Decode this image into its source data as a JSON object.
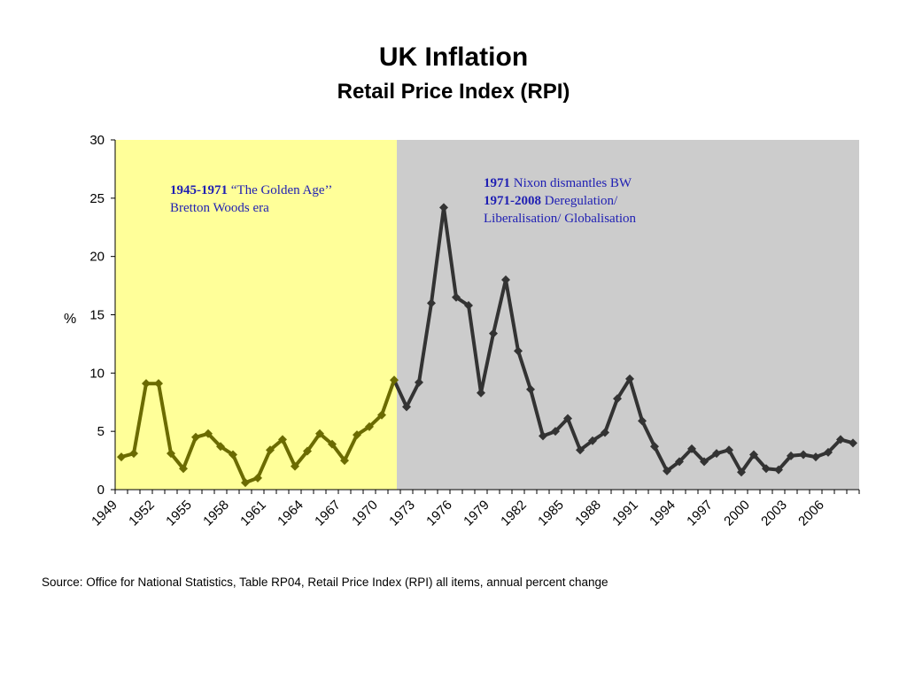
{
  "chart_data": {
    "type": "line",
    "title": "UK Inflation",
    "subtitle": "Retail Price Index (RPI)",
    "ylabel": "%",
    "xlabel": "",
    "ylim": [
      0,
      30
    ],
    "yticks": [
      0,
      5,
      10,
      15,
      20,
      25,
      30
    ],
    "x": [
      1949,
      1950,
      1951,
      1952,
      1953,
      1954,
      1955,
      1956,
      1957,
      1958,
      1959,
      1960,
      1961,
      1962,
      1963,
      1964,
      1965,
      1966,
      1967,
      1968,
      1969,
      1970,
      1971,
      1972,
      1973,
      1974,
      1975,
      1976,
      1977,
      1978,
      1979,
      1980,
      1981,
      1982,
      1983,
      1984,
      1985,
      1986,
      1987,
      1988,
      1989,
      1990,
      1991,
      1992,
      1993,
      1994,
      1995,
      1996,
      1997,
      1998,
      1999,
      2000,
      2001,
      2002,
      2003,
      2004,
      2005,
      2006,
      2007,
      2008
    ],
    "xtick_labels": [
      "1949",
      "1952",
      "1955",
      "1958",
      "1961",
      "1964",
      "1967",
      "1970",
      "1973",
      "1976",
      "1979",
      "1982",
      "1985",
      "1988",
      "1991",
      "1994",
      "1997",
      "2000",
      "2003",
      "2006"
    ],
    "series": [
      {
        "values": [
          2.8,
          3.1,
          9.1,
          9.1,
          3.1,
          1.8,
          4.5,
          4.8,
          3.7,
          3.0,
          0.6,
          1.0,
          3.4,
          4.3,
          2.0,
          3.3,
          4.8,
          3.9,
          2.5,
          4.7,
          5.4,
          6.4,
          9.4,
          7.1,
          9.2,
          16.0,
          24.2,
          16.5,
          15.8,
          8.3,
          13.4,
          18.0,
          11.9,
          8.6,
          4.6,
          5.0,
          6.1,
          3.4,
          4.2,
          4.9,
          7.8,
          9.5,
          5.9,
          3.7,
          1.6,
          2.4,
          3.5,
          2.4,
          3.1,
          3.4,
          1.5,
          3.0,
          1.8,
          1.7,
          2.9,
          3.0,
          2.8,
          3.2,
          4.3,
          4.0
        ],
        "color_before": "#6b6b00",
        "color_after": "#333333"
      }
    ],
    "regions": [
      {
        "from": 1949,
        "to": 1971,
        "color": "#ffff99"
      },
      {
        "from": 1971,
        "to": 2008,
        "color": "#cccccc"
      }
    ],
    "split_year": 1971,
    "grid": false,
    "legend": "none"
  },
  "annotations": {
    "golden_year": "1945-1971",
    "golden_text": "“The Golden Age’’",
    "golden_line2": "Bretton Woods era",
    "nixon_year": "1971",
    "nixon_text": "Nixon dismantles BW",
    "dereg_year": "1971-2008",
    "dereg_text": "Deregulation/",
    "dereg_line2": "Liberalisation/ Globalisation"
  },
  "source": "Source: Office for National Statistics, Table RP04, Retail Price Index (RPI) all items, annual percent change"
}
